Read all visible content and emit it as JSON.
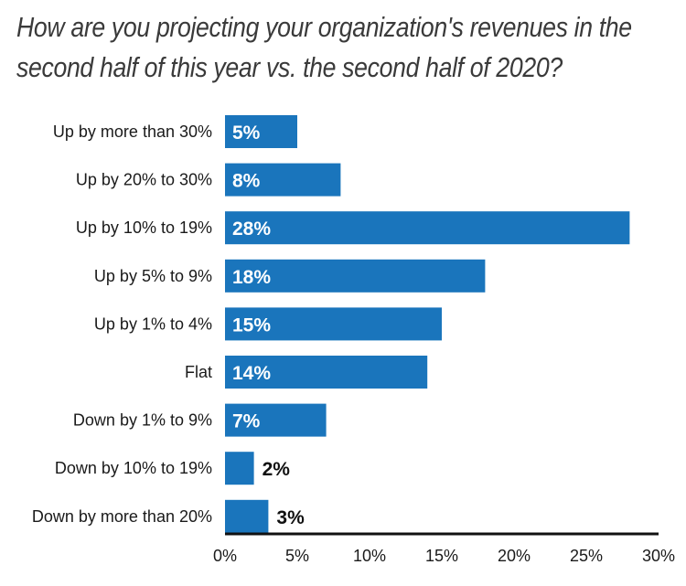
{
  "colors": {
    "bar": "#1a75bc",
    "axis": "#111111"
  },
  "chart_data": {
    "type": "bar",
    "orientation": "horizontal",
    "title_lines": [
      "How are you projecting your organization's revenues in the",
      "second half of this year vs. the second half of 2020?"
    ],
    "categories": [
      "Up by more than 30%",
      "Up by 20% to 30%",
      "Up by 10% to 19%",
      "Up by 5% to 9%",
      "Up by 1% to 4%",
      "Flat",
      "Down by 1% to 9%",
      "Down by 10% to 19%",
      "Down by more than 20%"
    ],
    "values": [
      5,
      8,
      28,
      18,
      15,
      14,
      7,
      2,
      3
    ],
    "value_labels": [
      "5%",
      "8%",
      "28%",
      "18%",
      "15%",
      "14%",
      "7%",
      "2%",
      "3%"
    ],
    "xlim": [
      0,
      30
    ],
    "xticks": [
      0,
      5,
      10,
      15,
      20,
      25,
      30
    ],
    "xtick_labels": [
      "0%",
      "5%",
      "10%",
      "15%",
      "20%",
      "25%",
      "30%"
    ],
    "grid": false,
    "legend": "none"
  }
}
